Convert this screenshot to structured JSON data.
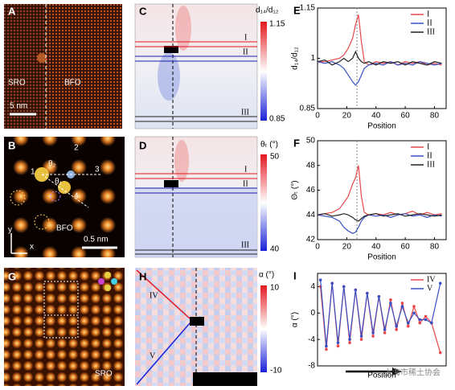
{
  "panels": {
    "A": {
      "label": "A",
      "left": "SRO",
      "right": "BFO",
      "scale": "5 nm"
    },
    "B": {
      "label": "B",
      "sites": [
        "1",
        "2",
        "3",
        "4"
      ],
      "angles": [
        "θ₂",
        "θ₁"
      ],
      "region": "BFO",
      "scale": "0.5 nm",
      "axes": [
        "y",
        "x"
      ]
    },
    "C": {
      "label": "C",
      "colorbar": {
        "title": "d₁₄/d₁₂",
        "max": 1.15,
        "min": 0.85
      },
      "lines": [
        "I",
        "II",
        "III"
      ]
    },
    "D": {
      "label": "D",
      "colorbar": {
        "title": "θₜ (°)",
        "max": 50,
        "min": 40
      },
      "lines": [
        "I",
        "II",
        "III"
      ]
    },
    "G": {
      "label": "G",
      "region": "SRO"
    },
    "H": {
      "label": "H",
      "colorbar": {
        "title": "α (°)",
        "max": 10,
        "min": -10
      },
      "lines": [
        "IV",
        "V"
      ]
    }
  },
  "watermark": "上海市稀土协会",
  "chart_data": [
    {
      "type": "line",
      "title": "E",
      "xlabel": "Position",
      "ylabel": "d₁₄/d₁₂",
      "x": [
        0,
        5,
        10,
        15,
        18,
        21,
        24,
        26,
        28,
        30,
        32,
        35,
        40,
        45,
        50,
        55,
        60,
        65,
        70,
        75,
        80,
        85
      ],
      "xlim": [
        0,
        88
      ],
      "xticks": [
        0,
        20,
        40,
        60,
        80
      ],
      "ylim": [
        0.85,
        1.15
      ],
      "yticks": [
        0.85,
        1,
        1.15
      ],
      "vline_x": 27,
      "legend": "upper right",
      "series": [
        {
          "name": "I",
          "color": "#e8474b",
          "values": [
            0.99,
            0.99,
            0.995,
            1.0,
            1.01,
            1.03,
            1.06,
            1.1,
            1.13,
            1.05,
            0.99,
            0.98,
            0.99,
            0.985,
            0.99,
            0.98,
            0.99,
            0.985,
            0.99,
            0.98,
            0.985,
            0.98
          ]
        },
        {
          "name": "II",
          "color": "#3a4fc4",
          "values": [
            0.99,
            0.985,
            0.99,
            0.98,
            0.97,
            0.95,
            0.93,
            0.92,
            0.93,
            0.95,
            0.97,
            0.98,
            0.985,
            0.98,
            0.99,
            0.98,
            0.985,
            0.98,
            0.99,
            0.985,
            0.98,
            0.985
          ]
        },
        {
          "name": "III",
          "color": "#222222",
          "values": [
            0.99,
            0.995,
            0.98,
            0.99,
            1.0,
            0.99,
            1.0,
            1.02,
            1.0,
            0.99,
            0.985,
            0.99,
            0.98,
            0.99,
            0.985,
            0.99,
            0.98,
            0.99,
            0.985,
            0.98,
            0.99,
            0.985
          ]
        }
      ]
    },
    {
      "type": "line",
      "title": "F",
      "xlabel": "Position",
      "ylabel": "Θₜ (°)",
      "x": [
        0,
        5,
        10,
        15,
        18,
        21,
        24,
        26,
        28,
        30,
        32,
        35,
        40,
        45,
        50,
        55,
        60,
        65,
        70,
        75,
        80,
        85
      ],
      "xlim": [
        0,
        88
      ],
      "xticks": [
        0,
        20,
        40,
        60,
        80
      ],
      "ylim": [
        42,
        50
      ],
      "yticks": [
        42,
        44,
        46,
        48,
        50
      ],
      "vline_x": 27,
      "legend": "upper right",
      "series": [
        {
          "name": "I",
          "color": "#e8474b",
          "values": [
            44,
            44.1,
            44.2,
            44.5,
            45,
            45.5,
            46.5,
            47,
            48,
            45.5,
            44.2,
            44,
            44.1,
            44,
            44.2,
            44,
            44.1,
            44.3,
            44,
            44.2,
            44,
            44.1
          ]
        },
        {
          "name": "II",
          "color": "#3a4fc4",
          "values": [
            44,
            43.9,
            43.8,
            43.5,
            43,
            42.7,
            42.5,
            42.6,
            43,
            43.5,
            43.8,
            44,
            43.9,
            44,
            43.8,
            44,
            44.1,
            43.9,
            44,
            43.8,
            44,
            43.9
          ]
        },
        {
          "name": "III",
          "color": "#222222",
          "values": [
            44,
            44.1,
            43.9,
            44,
            44.1,
            44,
            43.8,
            43.6,
            43.5,
            43.7,
            43.9,
            44,
            44.1,
            43.9,
            44,
            44.1,
            43.9,
            44,
            44.1,
            44,
            43.9,
            44
          ]
        }
      ]
    },
    {
      "type": "line",
      "title": "I",
      "xlabel": "Position",
      "ylabel": "α (°)",
      "markers": true,
      "x": [
        2,
        6,
        10,
        14,
        18,
        22,
        26,
        30,
        34,
        38,
        42,
        46,
        50,
        54,
        58,
        62,
        66,
        70,
        74,
        78,
        84
      ],
      "xlim": [
        0,
        88
      ],
      "ylim": [
        -8,
        6
      ],
      "yticks": [
        -8,
        -4,
        0,
        4
      ],
      "legend": "upper right",
      "series": [
        {
          "name": "IV",
          "color": "#e8474b",
          "values": [
            4,
            -5.5,
            4.5,
            -5,
            4,
            -4.5,
            3.5,
            -4,
            3,
            -3.5,
            2.5,
            -3,
            2,
            -2.5,
            1.5,
            -2,
            1,
            -1.5,
            -0.5,
            -1.5,
            -6
          ]
        },
        {
          "name": "V",
          "color": "#3a4fc4",
          "values": [
            5,
            -5,
            4.5,
            -4.5,
            4,
            -4,
            3.5,
            -3.5,
            3,
            -3,
            2.5,
            -2.5,
            1.5,
            -2,
            1,
            -1.5,
            0,
            -1,
            -1,
            -1.5,
            4.5
          ]
        }
      ]
    }
  ]
}
